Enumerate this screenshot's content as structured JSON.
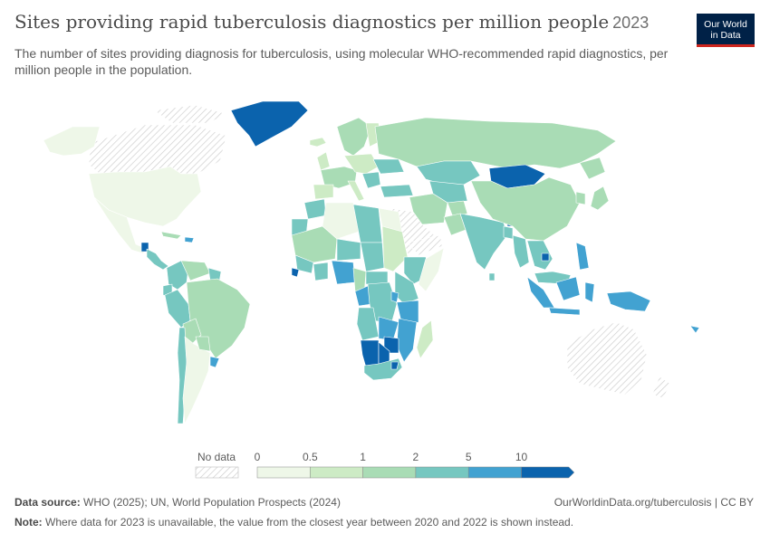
{
  "header": {
    "title": "Sites providing rapid tuberculosis diagnostics per million people",
    "year": "2023",
    "subtitle": "The number of sites providing diagnosis for tuberculosis, using molecular WHO-recommended rapid diagnostics, per million people in the population."
  },
  "logo": {
    "line1": "Our World",
    "line2": "in Data"
  },
  "legend": {
    "no_data_label": "No data",
    "bins": [
      {
        "from": 0,
        "to": 0.5,
        "color": "#eef7e8"
      },
      {
        "from": 0.5,
        "to": 1,
        "color": "#cdebc5"
      },
      {
        "from": 1,
        "to": 2,
        "color": "#a9dcb5"
      },
      {
        "from": 2,
        "to": 5,
        "color": "#76c7c0"
      },
      {
        "from": 5,
        "to": 10,
        "color": "#42a2d1"
      },
      {
        "from": 10,
        "to": null,
        "color": "#0b63ad"
      }
    ],
    "tick_labels": [
      "0",
      "0.5",
      "1",
      "2",
      "5",
      "10"
    ]
  },
  "footer": {
    "source_label": "Data source:",
    "source_text": "WHO (2025); UN, World Population Prospects (2024)",
    "url": "OurWorldinData.org/tuberculosis | CC BY",
    "note_label": "Note:",
    "note_text": "Where data for 2023 is unavailable, the value from the closest year between 2020 and 2022 is shown instead."
  },
  "colors": {
    "bin0": "#eef7e8",
    "bin1": "#cdebc5",
    "bin2": "#a9dcb5",
    "bin3": "#76c7c0",
    "bin4": "#42a2d1",
    "bin5": "#0b63ad",
    "no_data": "hatched"
  }
}
